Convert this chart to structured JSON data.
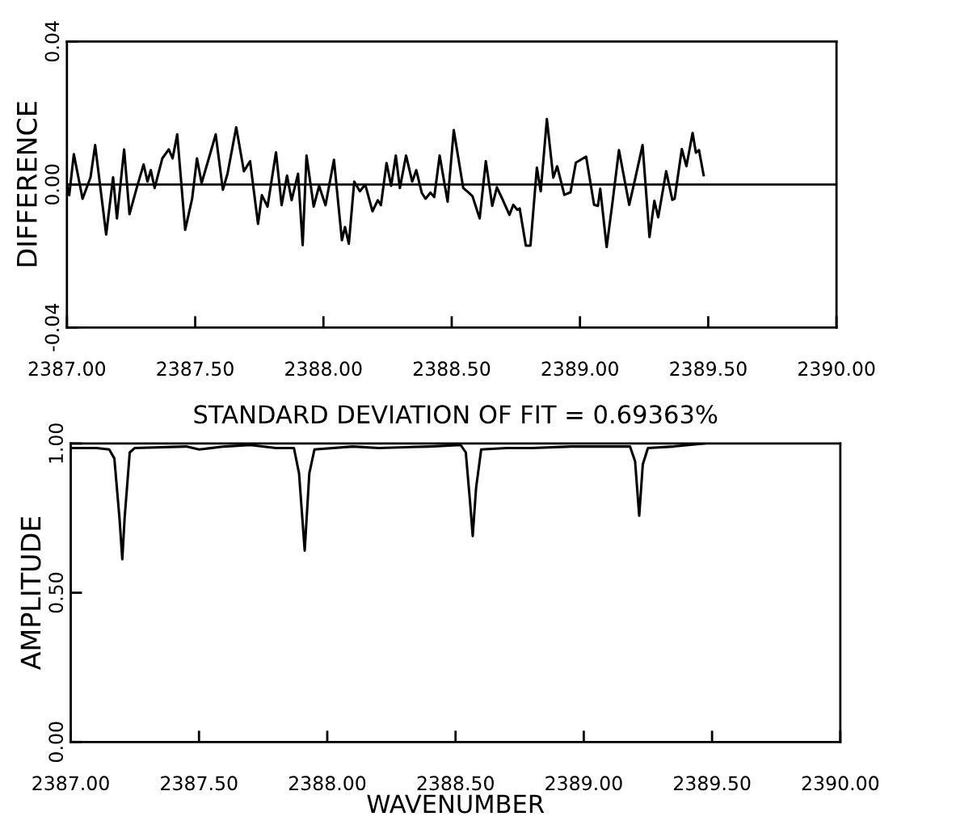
{
  "chart_data": [
    {
      "type": "line",
      "ylabel": "DIFFERENCE",
      "x": [
        2387.0,
        2387.009,
        2387.027,
        2387.061,
        2387.092,
        2387.11,
        2387.153,
        2387.18,
        2387.195,
        2387.223,
        2387.244,
        2387.272,
        2387.299,
        2387.314,
        2387.327,
        2387.342,
        2387.372,
        2387.397,
        2387.412,
        2387.43,
        2387.461,
        2387.488,
        2387.507,
        2387.525,
        2387.55,
        2387.58,
        2387.608,
        2387.626,
        2387.66,
        2387.69,
        2387.714,
        2387.745,
        2387.76,
        2387.782,
        2387.815,
        2387.837,
        2387.858,
        2387.876,
        2387.901,
        2387.919,
        2387.934,
        2387.962,
        2387.983,
        2388.008,
        2388.041,
        2388.072,
        2388.084,
        2388.099,
        2388.12,
        2388.142,
        2388.163,
        2388.191,
        2388.212,
        2388.224,
        2388.246,
        2388.264,
        2388.282,
        2388.298,
        2388.322,
        2388.346,
        2388.362,
        2388.383,
        2388.398,
        2388.417,
        2388.432,
        2388.453,
        2388.484,
        2388.508,
        2388.545,
        2388.566,
        2388.581,
        2388.609,
        2388.633,
        2388.658,
        2388.676,
        2388.697,
        2388.725,
        2388.74,
        2388.756,
        2388.765,
        2388.789,
        2388.807,
        2388.832,
        2388.847,
        2388.871,
        2388.896,
        2388.911,
        2388.939,
        2388.963,
        2388.984,
        2389.024,
        2389.055,
        2389.07,
        2389.079,
        2389.104,
        2389.125,
        2389.152,
        2389.192,
        2389.213,
        2389.244,
        2389.271,
        2389.29,
        2389.305,
        2389.336,
        2389.36,
        2389.369,
        2389.397,
        2389.415,
        2389.439,
        2389.452,
        2389.464,
        2389.482
      ],
      "series": [
        {
          "color": "#000000",
          "values": [
            0.0,
            -0.003,
            0.0085,
            -0.004,
            0.002,
            0.011,
            -0.014,
            0.002,
            -0.0095,
            0.0098,
            -0.0083,
            -0.001,
            0.0056,
            0.0008,
            0.004,
            -0.001,
            0.0073,
            0.0098,
            0.0073,
            0.014,
            -0.0127,
            -0.004,
            0.0073,
            0.0004,
            0.0065,
            0.014,
            -0.0015,
            0.003,
            0.016,
            0.0037,
            0.0065,
            -0.011,
            -0.003,
            -0.0062,
            0.009,
            -0.0058,
            0.0025,
            -0.0044,
            0.003,
            -0.017,
            0.0081,
            -0.0062,
            -0.0004,
            -0.0058,
            0.0069,
            -0.0156,
            -0.0119,
            -0.0166,
            0.0008,
            -0.0019,
            0.0,
            -0.0075,
            -0.0044,
            -0.0058,
            0.006,
            -0.0004,
            0.0081,
            -0.001,
            0.0081,
            0.0008,
            0.004,
            -0.0023,
            -0.004,
            -0.0023,
            -0.0035,
            0.0081,
            -0.0048,
            0.0152,
            -0.001,
            -0.0023,
            -0.0033,
            -0.0095,
            0.0065,
            -0.006,
            -0.0008,
            -0.004,
            -0.0085,
            -0.0057,
            -0.0071,
            -0.0067,
            -0.0171,
            -0.0171,
            0.0047,
            -0.0019,
            0.0183,
            0.0019,
            0.0051,
            -0.0029,
            -0.0022,
            0.0061,
            0.0078,
            -0.0057,
            -0.006,
            -0.0012,
            -0.0175,
            -0.006,
            0.0096,
            -0.0057,
            0.0009,
            0.011,
            -0.0147,
            -0.0046,
            -0.0092,
            0.0037,
            -0.0043,
            -0.004,
            0.0099,
            0.0051,
            0.0144,
            0.0089,
            0.0096,
            0.0026
          ]
        }
      ],
      "xlim": [
        2387,
        2390
      ],
      "ylim": [
        -0.04,
        0.04
      ],
      "xticks": [
        {
          "value": 2387,
          "label": "2387.00"
        },
        {
          "value": 2387.5,
          "label": "2387.50"
        },
        {
          "value": 2388,
          "label": "2388.00"
        },
        {
          "value": 2388.5,
          "label": "2388.50"
        },
        {
          "value": 2389,
          "label": "2389.00"
        },
        {
          "value": 2389.5,
          "label": "2389.50"
        },
        {
          "value": 2390,
          "label": "2390.00"
        }
      ],
      "yticks": [
        {
          "value": -0.04,
          "label": "-0.04"
        },
        {
          "value": 0,
          "label": "0.00"
        },
        {
          "value": 0.04,
          "label": "0.04"
        }
      ],
      "ref_lines": [
        {
          "axis": "y",
          "value": 0,
          "color": "#000000"
        }
      ]
    },
    {
      "type": "line",
      "title": "STANDARD DEVIATION OF FIT = 0.69363%",
      "xlabel": "WAVENUMBER",
      "ylabel": "AMPLITUDE",
      "x": [
        2387.0,
        2387.1,
        2387.15,
        2387.17,
        2387.19,
        2387.201,
        2387.21,
        2387.23,
        2387.25,
        2387.45,
        2387.5,
        2387.6,
        2387.7,
        2387.8,
        2387.87,
        2387.89,
        2387.912,
        2387.93,
        2387.95,
        2388.1,
        2388.2,
        2388.4,
        2388.52,
        2388.54,
        2388.557,
        2388.567,
        2388.58,
        2388.6,
        2388.7,
        2388.8,
        2388.95,
        2389.1,
        2389.18,
        2389.2,
        2389.216,
        2389.23,
        2389.25,
        2389.35,
        2389.47
      ],
      "series": [
        {
          "color": "#000000",
          "values": [
            0.985,
            0.985,
            0.98,
            0.95,
            0.75,
            0.612,
            0.75,
            0.97,
            0.985,
            0.99,
            0.98,
            0.99,
            0.995,
            0.985,
            0.985,
            0.9,
            0.641,
            0.9,
            0.98,
            0.99,
            0.985,
            0.99,
            0.995,
            0.97,
            0.8,
            0.69,
            0.85,
            0.98,
            0.985,
            0.985,
            0.99,
            0.99,
            0.99,
            0.94,
            0.758,
            0.93,
            0.985,
            0.99,
            1.0
          ]
        }
      ],
      "xlim": [
        2387,
        2390
      ],
      "ylim": [
        0,
        1
      ],
      "xticks": [
        {
          "value": 2387,
          "label": "2387.00"
        },
        {
          "value": 2387.5,
          "label": "2387.50"
        },
        {
          "value": 2388,
          "label": "2388.00"
        },
        {
          "value": 2388.5,
          "label": "2388.50"
        },
        {
          "value": 2389,
          "label": "2389.00"
        },
        {
          "value": 2389.5,
          "label": "2389.50"
        },
        {
          "value": 2390,
          "label": "2390.00"
        }
      ],
      "yticks": [
        {
          "value": 0,
          "label": "0.00"
        },
        {
          "value": 0.5,
          "label": "0.50"
        },
        {
          "value": 1,
          "label": "1.00"
        }
      ]
    }
  ]
}
